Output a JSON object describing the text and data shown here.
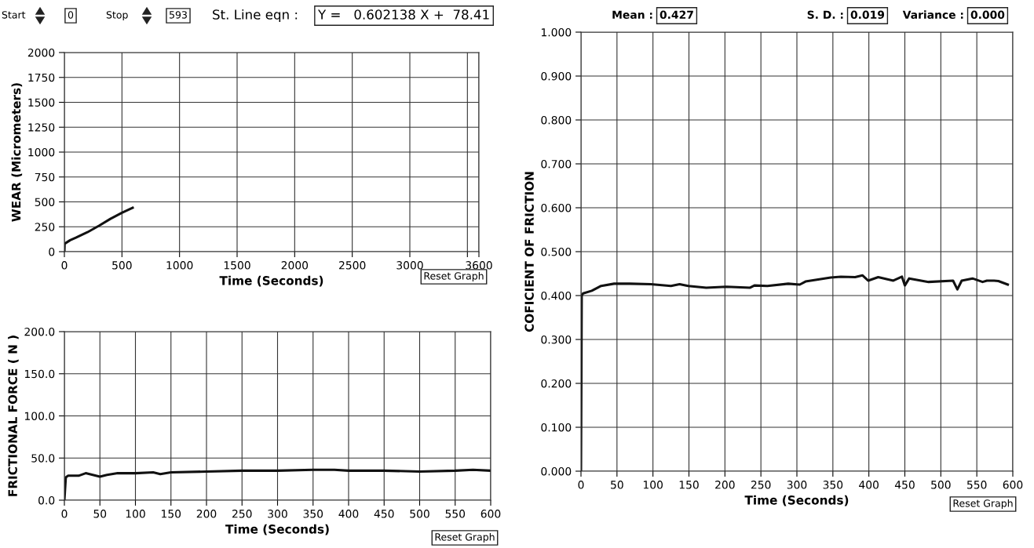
{
  "chart_data": [
    {
      "type": "line",
      "xlabel": "Time (Seconds)",
      "ylabel": "WEAR (Micrometers)",
      "x": [
        0,
        2,
        50,
        100,
        200,
        300,
        400,
        500,
        593
      ],
      "series": [
        {
          "color": "#111111",
          "values": [
            0,
            80,
            115,
            140,
            195,
            260,
            330,
            390,
            440
          ]
        }
      ],
      "xlim": [
        0,
        3600
      ],
      "xticks": [
        0,
        500,
        1000,
        1500,
        2000,
        2500,
        3000,
        {
          "value": 3500,
          "label": null
        },
        3600
      ],
      "ylim": [
        0,
        2000
      ],
      "yticks": [
        0,
        250,
        500,
        750,
        1000,
        1250,
        1500,
        1750,
        2000
      ],
      "grid": true,
      "marker": "none",
      "line_style": "solid",
      "annotations": [
        "Start",
        "0",
        "Stop",
        "593",
        "St. Line eqn :",
        "Y =   0.602138 X +  78.41",
        "Reset Graph"
      ]
    },
    {
      "type": "line",
      "xlabel": "Time (Seconds)",
      "ylabel": "COFICIENT OF FRICTION",
      "x": [
        0,
        1,
        3,
        15,
        28,
        46,
        68,
        97,
        125,
        137,
        149,
        174,
        202,
        235,
        241,
        259,
        288,
        304,
        312,
        347,
        361,
        381,
        391,
        399,
        413,
        434,
        446,
        450,
        456,
        483,
        517,
        523,
        529,
        544,
        558,
        564,
        574,
        580,
        593
      ],
      "series": [
        {
          "color": "#111111",
          "values": [
            0,
            0.4,
            0.405,
            0.411,
            0.422,
            0.427,
            0.427,
            0.426,
            0.422,
            0.426,
            0.422,
            0.418,
            0.42,
            0.418,
            0.423,
            0.422,
            0.427,
            0.425,
            0.432,
            0.441,
            0.443,
            0.442,
            0.446,
            0.434,
            0.442,
            0.434,
            0.443,
            0.423,
            0.439,
            0.431,
            0.434,
            0.414,
            0.434,
            0.439,
            0.431,
            0.434,
            0.434,
            0.433,
            0.425
          ]
        }
      ],
      "xlim": [
        0,
        600
      ],
      "xticks": [
        0,
        50,
        100,
        150,
        200,
        250,
        300,
        350,
        400,
        450,
        500,
        550,
        600
      ],
      "ylim": [
        0,
        1
      ],
      "yticks": [
        {
          "value": 0,
          "label": "0.000"
        },
        {
          "value": 0.1,
          "label": "0.100"
        },
        {
          "value": 0.2,
          "label": "0.200"
        },
        {
          "value": 0.3,
          "label": "0.300"
        },
        {
          "value": 0.4,
          "label": "0.400"
        },
        {
          "value": 0.5,
          "label": "0.500"
        },
        {
          "value": 0.6,
          "label": "0.600"
        },
        {
          "value": 0.7,
          "label": "0.700"
        },
        {
          "value": 0.8,
          "label": "0.800"
        },
        {
          "value": 0.9,
          "label": "0.900"
        },
        {
          "value": 1,
          "label": "1.000"
        }
      ],
      "grid": true,
      "marker": "none",
      "line_style": "solid",
      "annotations": [
        "Mean :",
        "0.427",
        "S. D. :",
        "0.019",
        "Variance :",
        "0.000",
        "Reset Graph"
      ]
    },
    {
      "type": "line",
      "xlabel": "Time (Seconds)",
      "ylabel": "FRICTIONAL FORCE ( N )",
      "x": [
        0,
        2,
        5,
        20,
        30,
        40,
        50,
        60,
        75,
        100,
        125,
        135,
        150,
        200,
        250,
        300,
        350,
        380,
        400,
        450,
        500,
        550,
        575,
        600
      ],
      "series": [
        {
          "color": "#111111",
          "values": [
            0,
            27,
            29,
            29,
            32,
            30,
            28,
            30,
            32,
            32,
            33,
            31,
            33,
            34,
            35,
            35,
            36,
            36,
            35,
            35,
            34,
            35,
            36,
            35
          ]
        }
      ],
      "xlim": [
        0,
        600
      ],
      "xticks": [
        0,
        50,
        100,
        150,
        200,
        250,
        300,
        350,
        400,
        450,
        500,
        550,
        600
      ],
      "ylim": [
        0,
        200
      ],
      "yticks": [
        {
          "value": 0,
          "label": "0.0"
        },
        {
          "value": 50,
          "label": "50.0"
        },
        {
          "value": 100,
          "label": "100.0"
        },
        {
          "value": 150,
          "label": "150.0"
        },
        {
          "value": 200,
          "label": "200.0"
        }
      ],
      "grid": true,
      "marker": "none",
      "line_style": "solid",
      "annotations": [
        "Reset Graph"
      ]
    }
  ]
}
